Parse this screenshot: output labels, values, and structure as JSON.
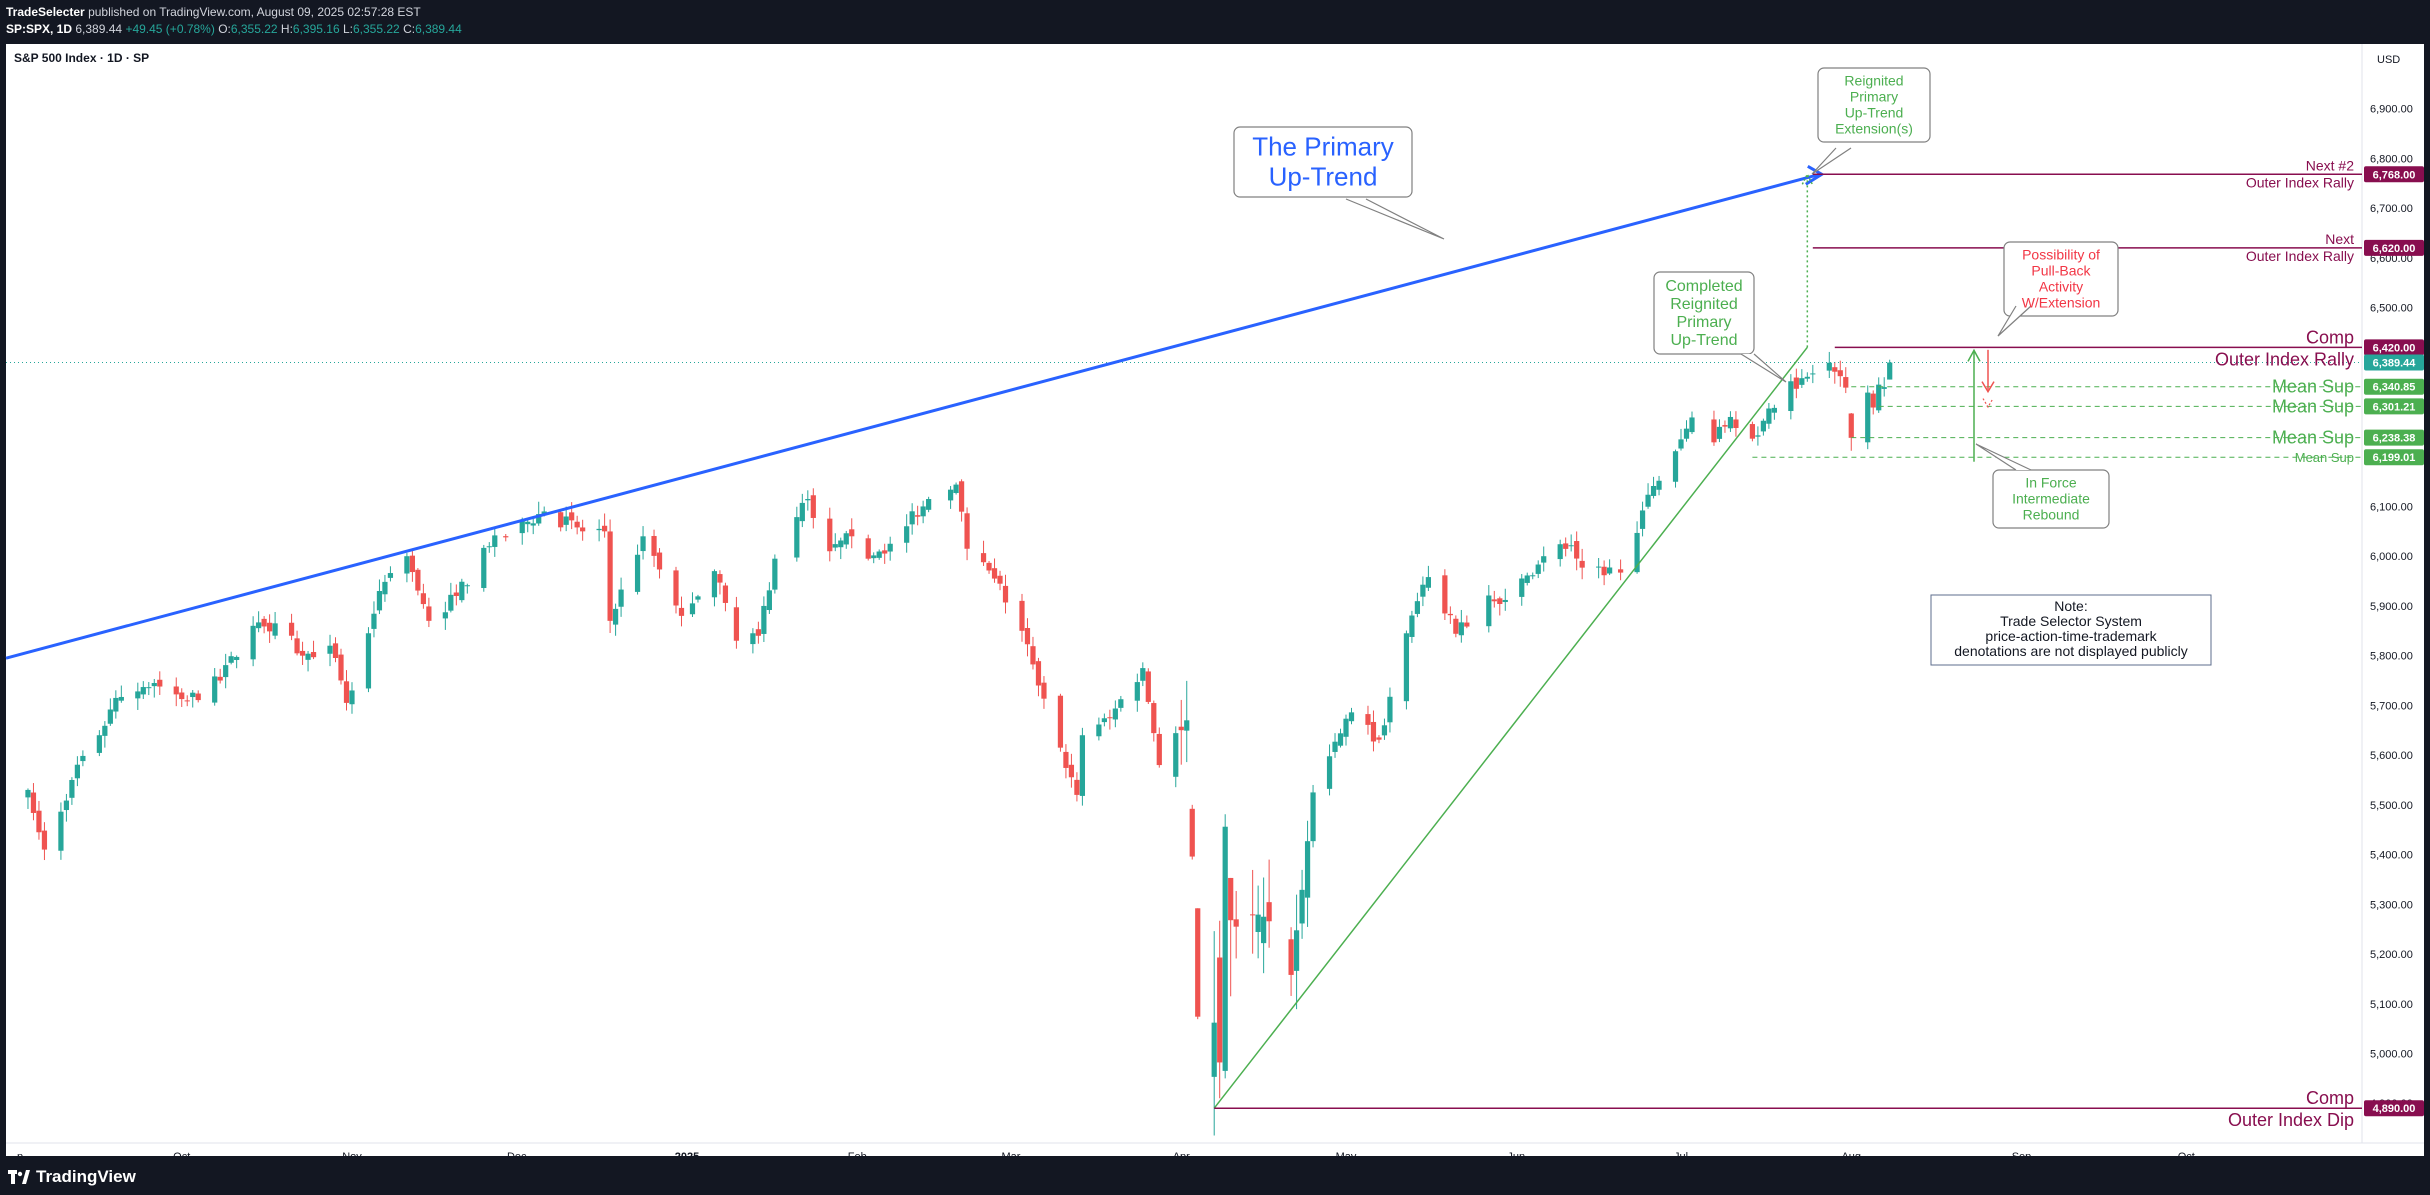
{
  "header": {
    "publisher": "TradeSelecter",
    "published_text": "published on TradingView.com, August 09, 2025 02:57:28 EST",
    "symbol": "SP:SPX, 1D",
    "last": "6,389.44",
    "change": "+49.45 (+0.78%)",
    "o_label": "O:",
    "o": "6,355.22",
    "h_label": "H:",
    "h": "6,395.16",
    "l_label": "L:",
    "l": "6,355.22",
    "c_label": "C:",
    "c": "6,389.44"
  },
  "footer": {
    "brand": "TradingView"
  },
  "colors": {
    "up": "#26a69a",
    "down": "#ef5350",
    "trend_blue": "#2962ff",
    "trend_green": "#4caf50",
    "maroon": "#880e4f",
    "red_text": "#f23645"
  },
  "chart_data": {
    "type": "candlestick",
    "title": "S&P 500 Index · 1D · SP",
    "currency": "USD",
    "ylim": [
      4820,
      7030
    ],
    "y_ticks": [
      4900,
      5000,
      5100,
      5200,
      5300,
      5400,
      5500,
      5600,
      5700,
      5800,
      5900,
      6000,
      6100,
      6200,
      6300,
      6400,
      6500,
      6600,
      6700,
      6800,
      6900
    ],
    "y_tick_labels": [
      "4,900.00",
      "5,000.00",
      "5,100.00",
      "5,200.00",
      "5,300.00",
      "5,400.00",
      "5,500.00",
      "5,600.00",
      "5,700.00",
      "5,800.00",
      "5,900.00",
      "6,000.00",
      "6,100.00",
      "6,200.00",
      "6,300.00",
      "6,400.00",
      "6,500.00",
      "6,600.00",
      "6,700.00",
      "6,800.00",
      "6,900.00"
    ],
    "x_start": "2024-08-30",
    "x_end": "2025-11-02",
    "x_ticks": [
      {
        "date": "2024-09-01",
        "label": "p"
      },
      {
        "date": "2024-10-01",
        "label": "Oct"
      },
      {
        "date": "2024-11-01",
        "label": "Nov"
      },
      {
        "date": "2024-12-01",
        "label": "Dec"
      },
      {
        "date": "2025-01-01",
        "label": "2025"
      },
      {
        "date": "2025-02-01",
        "label": "Feb"
      },
      {
        "date": "2025-03-01",
        "label": "Mar"
      },
      {
        "date": "2025-04-01",
        "label": "Apr"
      },
      {
        "date": "2025-05-01",
        "label": "May"
      },
      {
        "date": "2025-06-01",
        "label": "Jun"
      },
      {
        "date": "2025-07-01",
        "label": "Jul"
      },
      {
        "date": "2025-08-01",
        "label": "Aug"
      },
      {
        "date": "2025-09-01",
        "label": "Sep"
      },
      {
        "date": "2025-10-01",
        "label": "Oct"
      }
    ],
    "last_close": 6389.44,
    "anchors": [
      [
        "2024-09-03",
        5530
      ],
      [
        "2024-09-06",
        5410
      ],
      [
        "2024-09-11",
        5550
      ],
      [
        "2024-09-16",
        5640
      ],
      [
        "2024-09-19",
        5715
      ],
      [
        "2024-09-26",
        5745
      ],
      [
        "2024-10-02",
        5710
      ],
      [
        "2024-10-08",
        5750
      ],
      [
        "2024-10-14",
        5860
      ],
      [
        "2024-10-18",
        5865
      ],
      [
        "2024-10-23",
        5800
      ],
      [
        "2024-10-28",
        5820
      ],
      [
        "2024-10-31",
        5705
      ],
      [
        "2024-11-01",
        5730
      ],
      [
        "2024-11-06",
        5930
      ],
      [
        "2024-11-11",
        6000
      ],
      [
        "2024-11-15",
        5870
      ],
      [
        "2024-11-20",
        5920
      ],
      [
        "2024-11-26",
        6020
      ],
      [
        "2024-12-06",
        6090
      ],
      [
        "2024-12-13",
        6050
      ],
      [
        "2024-12-17",
        6050
      ],
      [
        "2024-12-18",
        5870
      ],
      [
        "2024-12-24",
        6040
      ],
      [
        "2024-12-31",
        5880
      ],
      [
        "2025-01-06",
        5970
      ],
      [
        "2025-01-10",
        5830
      ],
      [
        "2025-01-14",
        5840
      ],
      [
        "2025-01-17",
        5995
      ],
      [
        "2025-01-23",
        6115
      ],
      [
        "2025-01-27",
        6010
      ],
      [
        "2025-01-31",
        6040
      ],
      [
        "2025-02-03",
        5995
      ],
      [
        "2025-02-07",
        6025
      ],
      [
        "2025-02-14",
        6115
      ],
      [
        "2025-02-19",
        6144
      ],
      [
        "2025-02-21",
        6015
      ],
      [
        "2025-02-26",
        5955
      ],
      [
        "2025-03-03",
        5850
      ],
      [
        "2025-03-06",
        5740
      ],
      [
        "2025-03-10",
        5615
      ],
      [
        "2025-03-13",
        5520
      ],
      [
        "2025-03-14",
        5640
      ],
      [
        "2025-03-19",
        5675
      ],
      [
        "2025-03-25",
        5775
      ],
      [
        "2025-03-28",
        5580
      ],
      [
        "2025-04-02",
        5670
      ],
      [
        "2025-04-03",
        5400
      ],
      [
        "2025-04-04",
        5075
      ],
      [
        "2025-04-07",
        5062
      ],
      [
        "2025-04-08",
        4982
      ],
      [
        "2025-04-09",
        5456
      ],
      [
        "2025-04-10",
        5268
      ],
      [
        "2025-04-16",
        5275
      ],
      [
        "2025-04-21",
        5158
      ],
      [
        "2025-04-25",
        5525
      ],
      [
        "2025-05-02",
        5686
      ],
      [
        "2025-05-07",
        5631
      ],
      [
        "2025-05-12",
        5845
      ],
      [
        "2025-05-16",
        5958
      ],
      [
        "2025-05-21",
        5844
      ],
      [
        "2025-05-27",
        5921
      ],
      [
        "2025-05-30",
        5912
      ],
      [
        "2025-06-06",
        6000
      ],
      [
        "2025-06-11",
        6022
      ],
      [
        "2025-06-13",
        5977
      ],
      [
        "2025-06-20",
        5967
      ],
      [
        "2025-06-24",
        6092
      ],
      [
        "2025-07-03",
        6279
      ],
      [
        "2025-07-07",
        6229
      ],
      [
        "2025-07-10",
        6280
      ],
      [
        "2025-07-15",
        6243
      ],
      [
        "2025-07-17",
        6297
      ],
      [
        "2025-07-23",
        6358
      ],
      [
        "2025-07-28",
        6389
      ],
      [
        "2025-07-29",
        6371
      ],
      [
        "2025-07-30",
        6362
      ],
      [
        "2025-07-31",
        6339
      ],
      [
        "2025-08-01",
        6238
      ],
      [
        "2025-08-04",
        6329
      ],
      [
        "2025-08-05",
        6299
      ],
      [
        "2025-08-06",
        6345
      ],
      [
        "2025-08-07",
        6340
      ],
      [
        "2025-08-08",
        6389.44
      ]
    ],
    "levels": [
      {
        "price": 6768,
        "label": "6,768.00",
        "kind": "maroon",
        "text_top": "Next #2",
        "text_bottom": "Outer Index Rally",
        "from": "2025-07-25"
      },
      {
        "price": 6620,
        "label": "6,620.00",
        "kind": "maroon",
        "text_top": "Next",
        "text_bottom": "Outer Index Rally",
        "from": "2025-07-25"
      },
      {
        "price": 6420,
        "label": "6,420.00",
        "kind": "maroon",
        "text_top": "Comp",
        "text_bottom": "Outer Index Rally",
        "from": "2025-07-29"
      },
      {
        "price": 6340.85,
        "label": "6,340.85",
        "kind": "green",
        "text": "Mean Sup",
        "from": "2025-08-01"
      },
      {
        "price": 6301.21,
        "label": "6,301.21",
        "kind": "green",
        "text": "Mean Sup",
        "from": "2025-08-06"
      },
      {
        "price": 6238.38,
        "label": "6,238.38",
        "kind": "green",
        "text": "Mean Sup",
        "from": "2025-08-01"
      },
      {
        "price": 6199.01,
        "label": "6,199.01",
        "kind": "green-small",
        "text": "Mean Sup",
        "from": "2025-07-14"
      },
      {
        "price": 4890,
        "label": "4,890.00",
        "kind": "maroon",
        "text_top": "Comp",
        "text_bottom": "Outer Index Dip",
        "from": "2025-04-07"
      }
    ],
    "last_price_label": "6,389.44",
    "trend_blue": {
      "from": [
        "2024-08-30",
        5795
      ],
      "to": [
        "2025-07-27",
        6768
      ]
    },
    "trend_green": {
      "from": [
        "2025-04-07",
        4890
      ],
      "to": [
        "2025-07-24",
        6420
      ]
    },
    "annotations": {
      "primary_trend": [
        "The Primary",
        "Up-Trend"
      ],
      "reignited_extension": [
        "Reignited",
        "Primary",
        "Up-Trend",
        "Extension(s)"
      ],
      "completed": [
        "Completed",
        "Reignited",
        "Primary",
        "Up-Trend"
      ],
      "pullback": [
        "Possibility of",
        "Pull-Back",
        "Activity",
        "W/Extension"
      ],
      "in_force": [
        "In Force",
        "Intermediate",
        "Rebound"
      ],
      "note": [
        "Note:",
        "Trade Selector System",
        "price-action-time-trademark",
        "denotations are not displayed publicly"
      ]
    }
  }
}
